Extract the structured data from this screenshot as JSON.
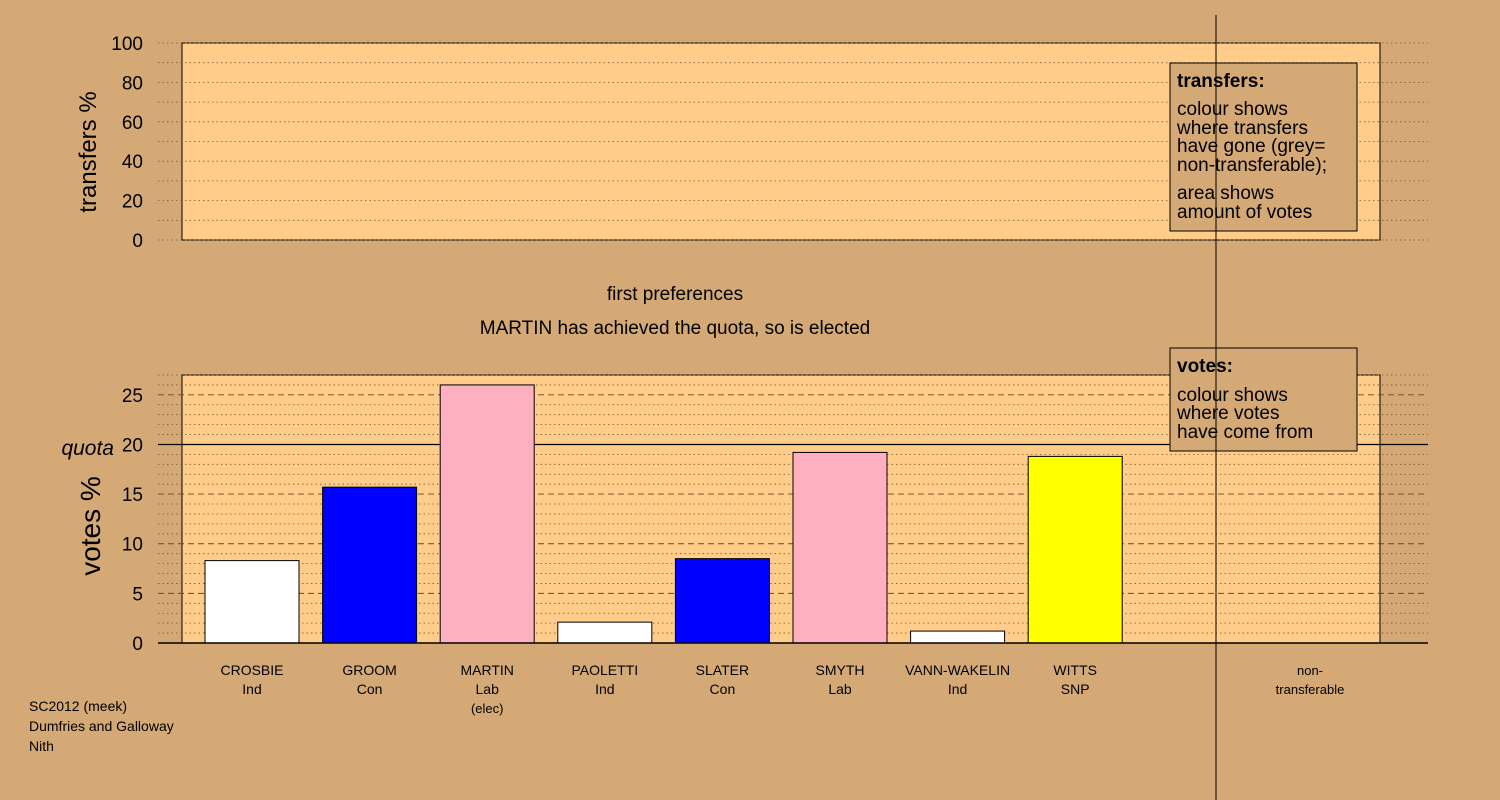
{
  "colors": {
    "background": "#d4a976",
    "plot_bg": "#ffcc8a",
    "legend_bg": "#d4a976",
    "party": {
      "Ind": "#ffffff",
      "Con": "#0000ff",
      "Lab": "#ffb0c0",
      "SNP": "#ffff00"
    }
  },
  "heading": {
    "line1": "first preferences",
    "line2": "MARTIN has achieved the quota, so is elected"
  },
  "legend_transfers": {
    "title": "transfers:",
    "text1": [
      "colour shows",
      "where transfers",
      "have gone (grey=",
      "non-transferable);"
    ],
    "text2": [
      "area shows",
      "amount of votes"
    ]
  },
  "legend_votes": {
    "title": "votes:",
    "text": [
      "colour shows",
      "where votes",
      "have come from"
    ]
  },
  "footer": [
    "SC2012 (meek)",
    "Dumfries and Galloway",
    "Nith"
  ],
  "chart_data": [
    {
      "type": "bar",
      "ylabel": "transfers %",
      "ylim": [
        0,
        100
      ],
      "yticks": [
        "0",
        "20",
        "40",
        "60",
        "80",
        "100"
      ],
      "categories": [],
      "values": []
    },
    {
      "type": "bar",
      "ylabel": "votes %",
      "ylim": [
        0,
        27
      ],
      "yticks": [
        "0",
        "5",
        "10",
        "15",
        "20",
        "25"
      ],
      "quota": {
        "label": "quota",
        "value": 20
      },
      "categories": [
        "CROSBIE",
        "GROOM",
        "MARTIN",
        "PAOLETTI",
        "SLATER",
        "SMYTH",
        "VANN-WAKELIN",
        "WITTS"
      ],
      "parties": [
        "Ind",
        "Con",
        "Lab",
        "Ind",
        "Con",
        "Lab",
        "Ind",
        "SNP"
      ],
      "notes": [
        "",
        "",
        "(elec)",
        "",
        "",
        "",
        "",
        ""
      ],
      "values": [
        8.3,
        15.7,
        26.0,
        2.1,
        8.5,
        19.2,
        1.2,
        18.8
      ],
      "extra_category": [
        "non-",
        "transferable"
      ]
    }
  ]
}
